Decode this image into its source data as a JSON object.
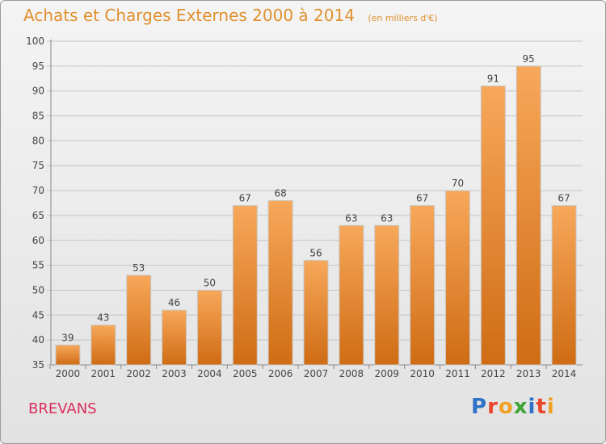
{
  "header": {
    "title": "Achats et Charges Externes 2000 à 2014",
    "subtitle": "(en milliers d'€)"
  },
  "footer": {
    "city": "BREVANS",
    "logo_text": "Proxiti",
    "logo_colors": [
      "#2f73c6",
      "#e8452b",
      "#f0a124",
      "#3fa535",
      "#2f73c6",
      "#e8452b",
      "#f0a124"
    ]
  },
  "colors": {
    "bar_top": "#f7a85a",
    "bar_bottom": "#cf6c14",
    "bar_stroke": "#c9c9c9",
    "title": "#e0902e",
    "city": "#dc2e5e"
  },
  "chart_data": {
    "type": "bar",
    "title": "Achats et Charges Externes 2000 à 2014",
    "subtitle": "(en milliers d'€)",
    "xlabel": "",
    "ylabel": "",
    "categories": [
      "2000",
      "2001",
      "2002",
      "2003",
      "2004",
      "2005",
      "2006",
      "2007",
      "2008",
      "2009",
      "2010",
      "2011",
      "2012",
      "2013",
      "2014"
    ],
    "values": [
      39,
      43,
      53,
      46,
      50,
      67,
      68,
      56,
      63,
      63,
      67,
      70,
      91,
      95,
      67
    ],
    "ylim": [
      35,
      100
    ],
    "yticks": [
      35,
      40,
      45,
      50,
      55,
      60,
      65,
      70,
      75,
      80,
      85,
      90,
      95,
      100
    ],
    "grid": true,
    "data_labels": true
  }
}
